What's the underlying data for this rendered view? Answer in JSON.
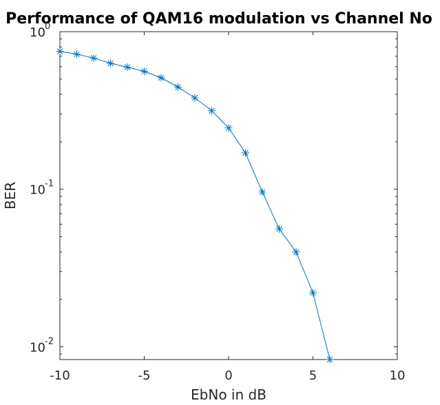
{
  "chart_data": {
    "type": "line",
    "title": "Performance of QAM16 modulation vs Channel No",
    "xlabel": "EbNo in dB",
    "ylabel": "BER",
    "xlim": [
      -10,
      10
    ],
    "ylim": [
      0.0083,
      1
    ],
    "yscale": "log",
    "x_ticks": [
      "-10",
      "-5",
      "0",
      "5",
      "10"
    ],
    "y_ticks": [
      {
        "base": "10",
        "exp": "0"
      },
      {
        "base": "10",
        "exp": "-1"
      },
      {
        "base": "10",
        "exp": "-2"
      }
    ],
    "marker": "*",
    "line_color": "#0072BD",
    "grid": false,
    "series": [
      {
        "x": [
          -10,
          -9,
          -8,
          -7,
          -6,
          -5,
          -4,
          -3,
          -2,
          -1,
          0,
          1,
          2,
          3,
          4,
          5,
          6
        ],
        "y": [
          0.75,
          0.72,
          0.68,
          0.63,
          0.595,
          0.56,
          0.51,
          0.445,
          0.38,
          0.315,
          0.245,
          0.17,
          0.096,
          0.056,
          0.04,
          0.022,
          0.0083
        ]
      }
    ]
  }
}
